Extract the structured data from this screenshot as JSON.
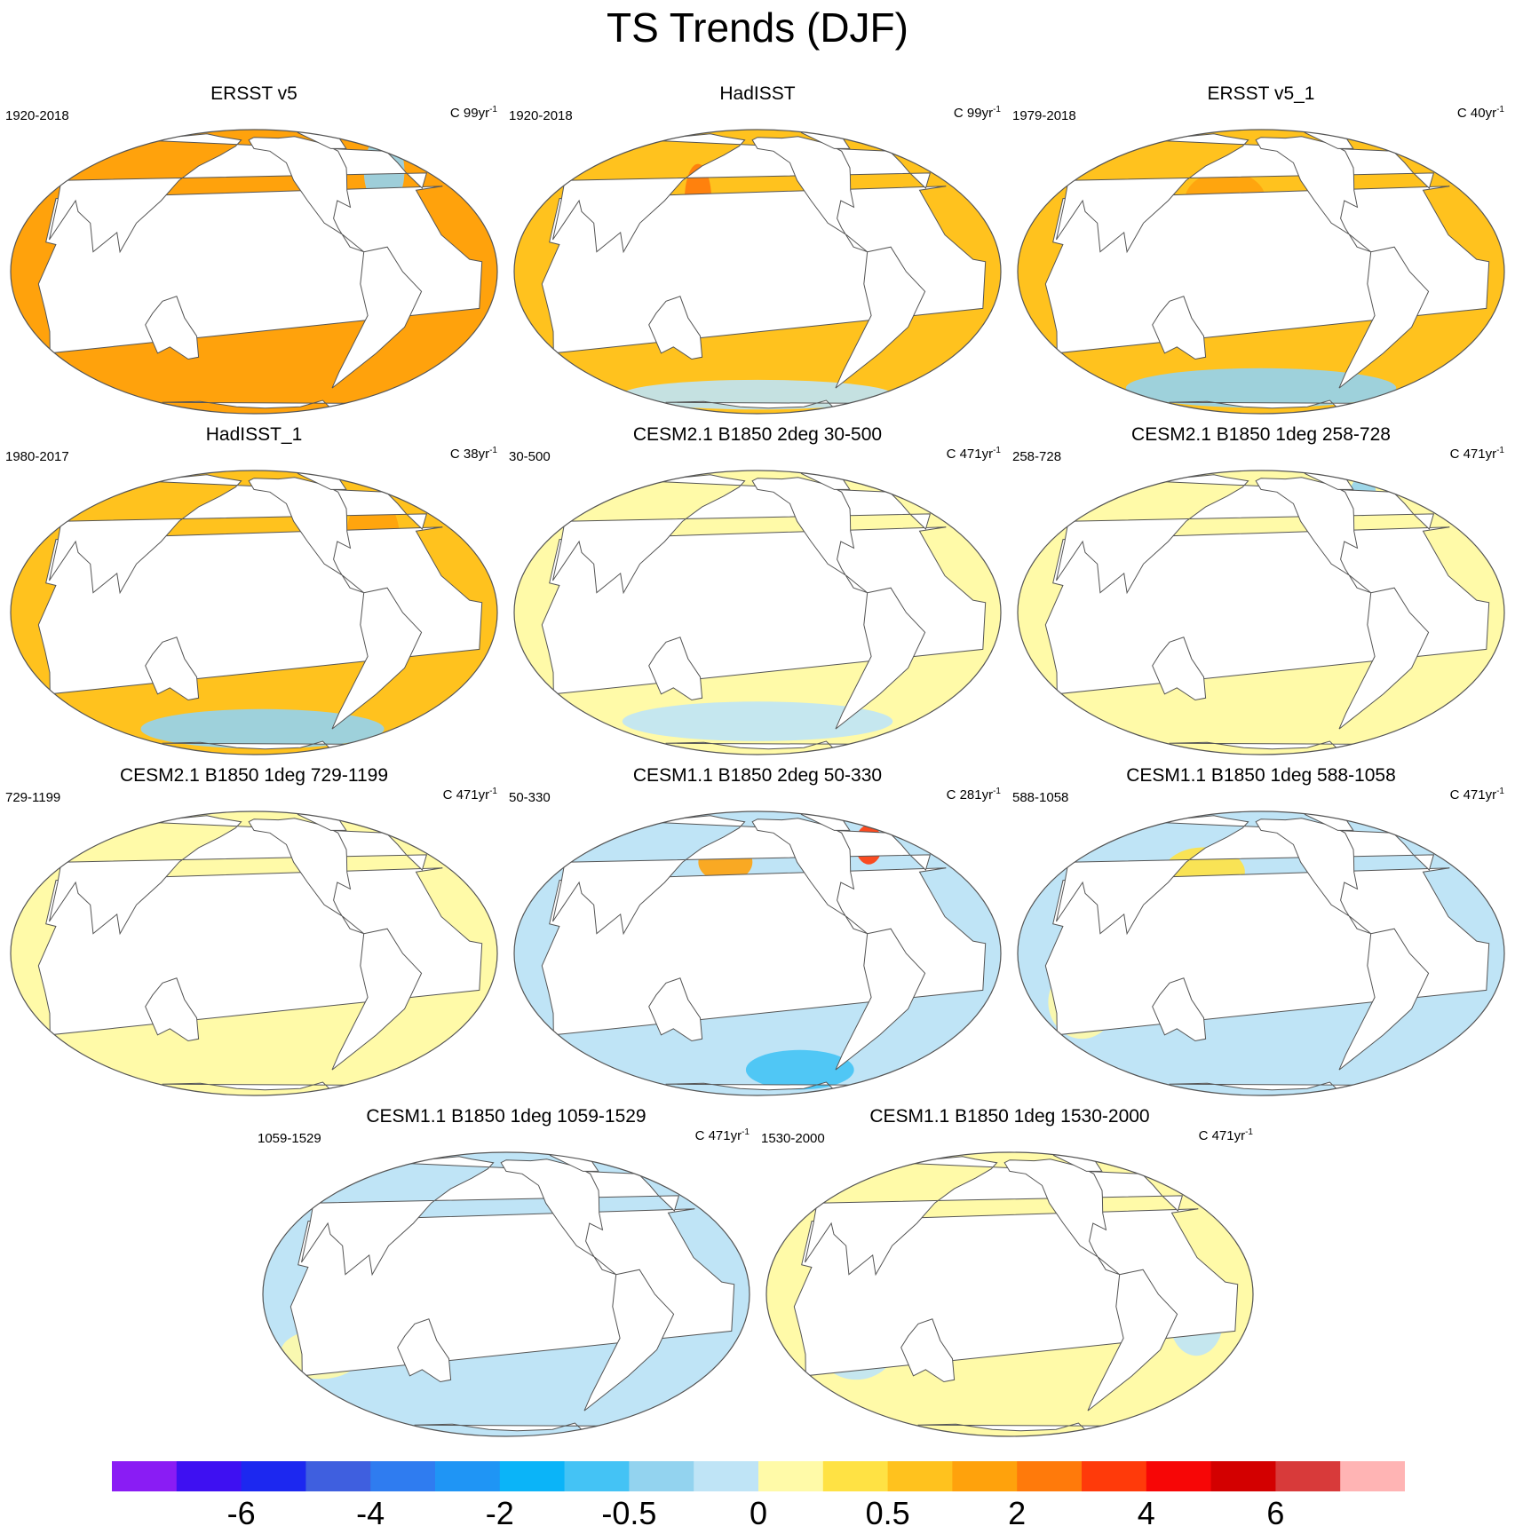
{
  "title": "TS Trends (DJF)",
  "colors": {
    "land": "#ffffff",
    "coast": "#555555",
    "border": "#555555"
  },
  "palette": [
    "#8a1cf4",
    "#3e10f2",
    "#1c28f0",
    "#3f5fdf",
    "#2f7cf0",
    "#1f95f5",
    "#0bb4f8",
    "#44c3f5",
    "#93d3ef",
    "#bfe4f6",
    "#fffaa8",
    "#ffe244",
    "#ffc21e",
    "#ffa20c",
    "#ff7a0b",
    "#ff3a0a",
    "#f70606",
    "#d30000",
    "#d83a3a",
    "#ffb4b4"
  ],
  "colorbar": {
    "labels": [
      {
        "text": "-6",
        "boundary": 2
      },
      {
        "text": "-4",
        "boundary": 4
      },
      {
        "text": "-2",
        "boundary": 6
      },
      {
        "text": "-0.5",
        "boundary": 8
      },
      {
        "text": "0",
        "boundary": 10
      },
      {
        "text": "0.5",
        "boundary": 12
      },
      {
        "text": "2",
        "boundary": 14
      },
      {
        "text": "4",
        "boundary": 16
      },
      {
        "text": "6",
        "boundary": 18
      }
    ]
  },
  "panels": [
    {
      "title": "ERSST v5",
      "period": "1920-2018",
      "units": "C 99yr",
      "units_exp": "-1",
      "base": 13,
      "features": [
        {
          "lon": 200,
          "lat": 5,
          "rlon": 60,
          "rlat": 25,
          "c": 14
        },
        {
          "lon": 330,
          "lat": 45,
          "rlon": 15,
          "rlat": 15,
          "c": 8
        }
      ]
    },
    {
      "title": "HadISST",
      "period": "1920-2018",
      "units": "C 99yr",
      "units_exp": "-1",
      "base": 12,
      "features": [
        {
          "lon": 200,
          "lat": 2,
          "rlon": 50,
          "rlat": 6,
          "c": 10
        },
        {
          "lon": 200,
          "lat": -60,
          "rlon": 100,
          "rlat": 6,
          "c": 9
        },
        {
          "lon": 150,
          "lat": 30,
          "rlon": 10,
          "rlat": 15,
          "c": 14
        }
      ]
    },
    {
      "title": "ERSST v5_1",
      "period": "1979-2018",
      "units": "C 40yr",
      "units_exp": "-1",
      "base": 12,
      "features": [
        {
          "lon": 230,
          "lat": 0,
          "rlon": 50,
          "rlat": 12,
          "c": 9
        },
        {
          "lon": 200,
          "lat": -55,
          "rlon": 100,
          "rlat": 8,
          "c": 8
        },
        {
          "lon": 170,
          "lat": 30,
          "rlon": 30,
          "rlat": 12,
          "c": 13
        }
      ]
    },
    {
      "title": "HadISST_1",
      "period": "1980-2017",
      "units": "C 38yr",
      "units_exp": "-1",
      "base": 12,
      "features": [
        {
          "lon": 220,
          "lat": 0,
          "rlon": 45,
          "rlat": 15,
          "c": 9
        },
        {
          "lon": 210,
          "lat": -55,
          "rlon": 90,
          "rlat": 8,
          "c": 8
        },
        {
          "lon": 300,
          "lat": 30,
          "rlon": 20,
          "rlat": 20,
          "c": 13
        }
      ]
    },
    {
      "title": "CESM2.1 B1850 2deg 30-500",
      "period": "30-500",
      "units": "C 471yr",
      "units_exp": "-1",
      "base": 10,
      "features": [
        {
          "lon": 200,
          "lat": 0,
          "rlon": 60,
          "rlat": 12,
          "c": 9
        },
        {
          "lon": 200,
          "lat": -50,
          "rlon": 100,
          "rlat": 8,
          "c": 9
        }
      ]
    },
    {
      "title": "CESM2.1 B1850 1deg 258-728",
      "period": "258-728",
      "units": "C 471yr",
      "units_exp": "-1",
      "base": 10,
      "features": [
        {
          "lon": 220,
          "lat": 2,
          "rlon": 50,
          "rlat": 6,
          "c": 11
        },
        {
          "lon": 320,
          "lat": 55,
          "rlon": 10,
          "rlat": 8,
          "c": 8
        }
      ]
    },
    {
      "title": "CESM2.1 B1850 1deg 729-1199",
      "period": "729-1199",
      "units": "C 471yr",
      "units_exp": "-1",
      "base": 10,
      "features": [
        {
          "lon": 190,
          "lat": 15,
          "rlon": 60,
          "rlat": 15,
          "c": 9
        },
        {
          "lon": 70,
          "lat": -20,
          "rlon": 30,
          "rlat": 12,
          "c": 9
        }
      ]
    },
    {
      "title": "CESM1.1 B1850 2deg 50-330",
      "period": "50-330",
      "units": "C 281yr",
      "units_exp": "-1",
      "base": 9,
      "features": [
        {
          "lon": 170,
          "lat": 40,
          "rlon": 20,
          "rlat": 8,
          "c": 13
        },
        {
          "lon": 320,
          "lat": 50,
          "rlon": 10,
          "rlat": 8,
          "c": 15
        },
        {
          "lon": 250,
          "lat": -55,
          "rlon": 40,
          "rlat": 8,
          "c": 7
        }
      ]
    },
    {
      "title": "CESM1.1 B1850 1deg 588-1058",
      "period": "588-1058",
      "units": "C 471yr",
      "units_exp": "-1",
      "base": 9,
      "features": [
        {
          "lon": 150,
          "lat": 35,
          "rlon": 30,
          "rlat": 10,
          "c": 11
        },
        {
          "lon": 60,
          "lat": -20,
          "rlon": 25,
          "rlat": 15,
          "c": 10
        }
      ]
    },
    {
      "title": "CESM1.1 B1850 1deg 1059-1529",
      "period": "1059-1529",
      "units": "C 471yr",
      "units_exp": "-1",
      "base": 9,
      "features": [
        {
          "lon": 220,
          "lat": 5,
          "rlon": 60,
          "rlat": 8,
          "c": 10
        },
        {
          "lon": 50,
          "lat": -25,
          "rlon": 30,
          "rlat": 10,
          "c": 10
        }
      ]
    },
    {
      "title": "CESM1.1 B1850 1deg 1530-2000",
      "period": "1530-2000",
      "units": "C 471yr",
      "units_exp": "-1",
      "base": 10,
      "features": [
        {
          "lon": 80,
          "lat": -20,
          "rlon": 30,
          "rlat": 15,
          "c": 9
        },
        {
          "lon": 340,
          "lat": -10,
          "rlon": 20,
          "rlat": 15,
          "c": 9
        }
      ]
    }
  ]
}
